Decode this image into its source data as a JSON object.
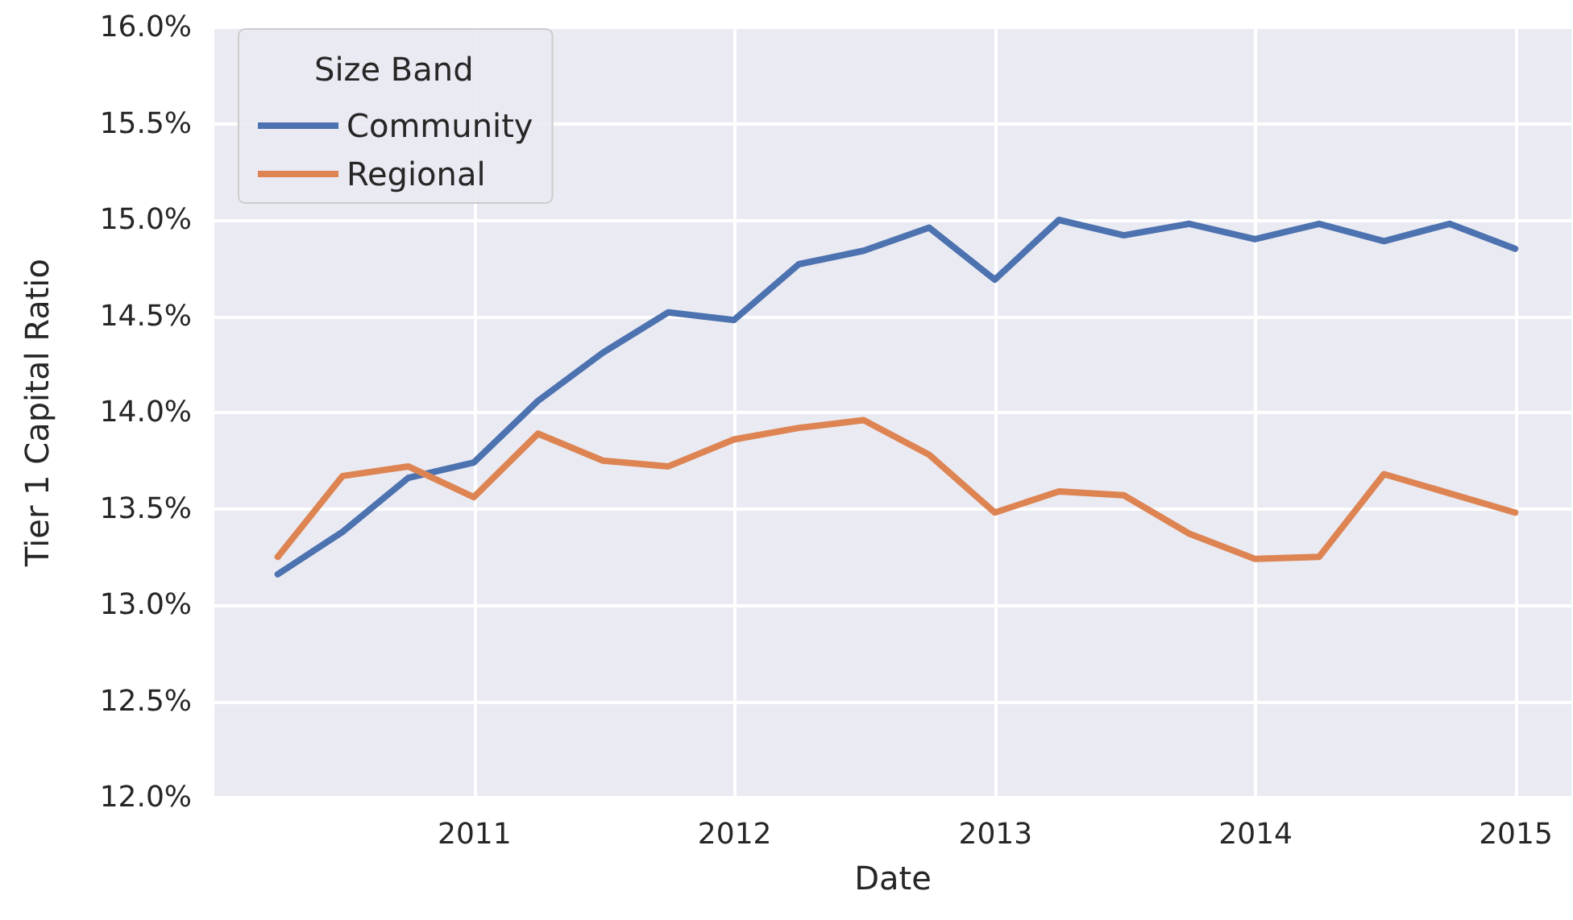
{
  "chart_data": {
    "type": "line",
    "xlabel": "Date",
    "ylabel": "Tier 1 Capital Ratio",
    "legend_title": "Size Band",
    "legend": "top left",
    "grid": true,
    "marker": "none",
    "line_style": "solid",
    "x": [
      "2010-03-31",
      "2010-06-30",
      "2010-09-30",
      "2010-12-31",
      "2011-03-31",
      "2011-06-30",
      "2011-09-30",
      "2011-12-31",
      "2012-03-31",
      "2012-06-30",
      "2012-09-30",
      "2012-12-31",
      "2013-03-31",
      "2013-06-30",
      "2013-09-30",
      "2013-12-31",
      "2014-03-31",
      "2014-06-30",
      "2014-09-30",
      "2014-12-31"
    ],
    "xlim": [
      "2010-01-01",
      "2015-03-20"
    ],
    "xticks": [
      {
        "value": "2011-01-01",
        "label": "2011"
      },
      {
        "value": "2012-01-01",
        "label": "2012"
      },
      {
        "value": "2013-01-01",
        "label": "2013"
      },
      {
        "value": "2014-01-01",
        "label": "2014"
      },
      {
        "value": "2015-01-01",
        "label": "2015"
      }
    ],
    "ylim": [
      12,
      16
    ],
    "yticks": [
      {
        "value": 12,
        "label": "12.0%"
      },
      {
        "value": 12.5,
        "label": "12.5%"
      },
      {
        "value": 13,
        "label": "13.0%"
      },
      {
        "value": 13.5,
        "label": "13.5%"
      },
      {
        "value": 14,
        "label": "14.0%"
      },
      {
        "value": 14.5,
        "label": "14.5%"
      },
      {
        "value": 15,
        "label": "15.0%"
      },
      {
        "value": 15.5,
        "label": "15.5%"
      },
      {
        "value": 16,
        "label": "16.0%"
      }
    ],
    "series": [
      {
        "name": "Community",
        "color": "#4c72b0",
        "values": [
          13.16,
          13.38,
          13.66,
          13.74,
          14.06,
          14.31,
          14.52,
          14.48,
          14.77,
          14.84,
          14.96,
          14.69,
          15.0,
          14.92,
          14.98,
          14.9,
          14.98,
          14.89,
          14.98,
          14.85
        ]
      },
      {
        "name": "Regional",
        "color": "#dd8452",
        "values": [
          13.25,
          13.67,
          13.72,
          13.56,
          13.89,
          13.75,
          13.72,
          13.86,
          13.92,
          13.96,
          13.78,
          13.48,
          13.59,
          13.57,
          13.37,
          13.24,
          13.25,
          13.68,
          13.58,
          13.48
        ]
      }
    ]
  }
}
